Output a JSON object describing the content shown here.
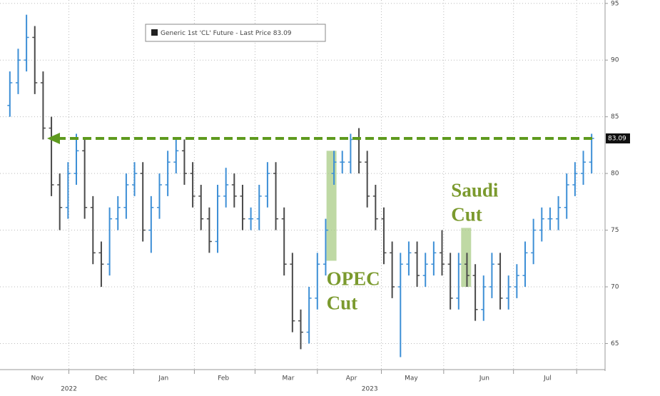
{
  "chart_data": {
    "type": "ohlc",
    "series": [
      {
        "name": "Generic 1st 'CL' Future - Last Price",
        "up_color": "#3d8fd6",
        "down_color": "#4a4a4a",
        "open": [
          86,
          88,
          90,
          92,
          88,
          84,
          79,
          77,
          80,
          82,
          77,
          73,
          72,
          76,
          77,
          79,
          80,
          75,
          77,
          79,
          81,
          82,
          80,
          78,
          76,
          74,
          78,
          79,
          78,
          76,
          76,
          78,
          80,
          76,
          72,
          67,
          66,
          69,
          72,
          80,
          81,
          81,
          83,
          81,
          78,
          76,
          73,
          70,
          72,
          73,
          71,
          72,
          73,
          72,
          69,
          72,
          71,
          68,
          70,
          72,
          69,
          70,
          71,
          73,
          75,
          76,
          76,
          77,
          79,
          80,
          81
        ],
        "high": [
          89,
          91,
          94,
          93,
          89,
          85,
          80,
          81,
          83.5,
          83,
          78,
          74,
          77,
          78,
          80,
          81,
          81,
          78,
          80,
          82,
          83,
          83,
          81,
          79,
          77,
          79,
          80.5,
          80,
          79,
          77,
          79,
          81,
          81,
          77,
          73,
          68,
          70,
          73,
          76,
          82,
          82,
          83.5,
          84,
          82,
          79,
          77,
          74,
          73,
          74,
          74,
          73,
          74,
          75,
          73,
          73,
          73,
          72,
          71,
          73,
          73,
          71,
          72,
          74,
          76,
          77,
          77,
          78,
          80,
          81,
          82,
          83.5
        ],
        "low": [
          85,
          87,
          89,
          87,
          83,
          78,
          75,
          76,
          79,
          76,
          72,
          70,
          71,
          75,
          76,
          78,
          74,
          73,
          76,
          78,
          80,
          79,
          77,
          75,
          73,
          73,
          77,
          77,
          75,
          75,
          75,
          77,
          75,
          71,
          66,
          64.5,
          65,
          68,
          71,
          79,
          80,
          80,
          80,
          77,
          75,
          72,
          69,
          63.8,
          71,
          70,
          70,
          71,
          71,
          68,
          68,
          70,
          67,
          67,
          69,
          68,
          68,
          69,
          70,
          72,
          74,
          75,
          75,
          76,
          78,
          79,
          80
        ],
        "close": [
          88,
          90,
          92,
          88,
          84,
          79,
          77,
          80,
          82,
          77,
          73,
          72,
          76,
          77,
          79,
          80,
          75,
          77,
          79,
          81,
          82,
          80,
          78,
          76,
          74,
          78,
          79,
          78,
          76,
          76,
          78,
          80,
          76,
          72,
          67,
          66,
          69,
          72,
          75,
          81,
          81,
          83,
          81,
          78,
          76,
          73,
          70,
          72,
          73,
          71,
          72,
          73,
          72,
          69,
          72,
          71,
          68,
          70,
          72,
          69,
          70,
          71,
          73,
          75,
          76,
          76,
          77,
          79,
          80,
          81,
          83.09
        ]
      }
    ],
    "last_price": 83.09,
    "xlim": [
      -0.5,
      70.5
    ],
    "xticks": [
      {
        "value": 3.3,
        "label": "Nov"
      },
      {
        "value": 11,
        "label": "Dec"
      },
      {
        "value": 18.5,
        "label": "Jan"
      },
      {
        "value": 25.7,
        "label": "Feb"
      },
      {
        "value": 33.5,
        "label": "Mar"
      },
      {
        "value": 41.1,
        "label": "Apr"
      },
      {
        "value": 48.3,
        "label": "May"
      },
      {
        "value": 57.1,
        "label": "Jun"
      },
      {
        "value": 64.7,
        "label": "Jul"
      }
    ],
    "xgrid": [
      7.1,
      14.9,
      22.2,
      29.5,
      37.0,
      44.7,
      52.2,
      60.6,
      68.2
    ],
    "years": [
      {
        "value": 7.1,
        "label": "2022"
      },
      {
        "value": 43.3,
        "label": "2023"
      }
    ],
    "ylim": [
      62.7,
      95.3
    ],
    "yticks": [
      65,
      70,
      75,
      80,
      85,
      90,
      95
    ],
    "grid": true,
    "highlights": [
      {
        "x": [
          38.1,
          39.3
        ],
        "y": [
          72.3,
          82
        ],
        "lines": [
          "OPEC",
          "Cut"
        ]
      },
      {
        "x": [
          54.3,
          55.5
        ],
        "y": [
          70,
          75.2
        ],
        "lines": [
          "Saudi",
          "Cut"
        ]
      }
    ]
  }
}
